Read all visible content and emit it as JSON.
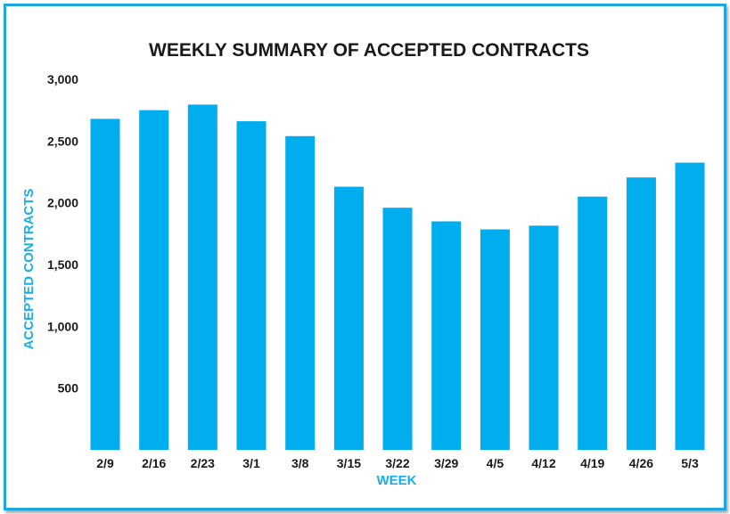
{
  "chart_data": {
    "type": "bar",
    "title": "WEEKLY SUMMARY OF ACCEPTED CONTRACTS",
    "xlabel": "WEEK",
    "ylabel": "ACCEPTED CONTRACTS",
    "categories": [
      "2/9",
      "2/16",
      "2/23",
      "3/1",
      "3/8",
      "3/15",
      "3/22",
      "3/29",
      "4/5",
      "4/12",
      "4/19",
      "4/26",
      "5/3"
    ],
    "values": [
      2680,
      2750,
      2795,
      2660,
      2540,
      2130,
      1960,
      1850,
      1785,
      1815,
      2050,
      2205,
      2325
    ],
    "ylim": [
      0,
      3000
    ],
    "yticks": [
      500,
      1000,
      1500,
      2000,
      2500,
      3000
    ],
    "ytick_labels": [
      "500",
      "1,000",
      "1,500",
      "2,000",
      "2,500",
      "3,000"
    ],
    "grid": false,
    "bar_color": "#00adee",
    "frame_color": "#1ca7e0"
  }
}
